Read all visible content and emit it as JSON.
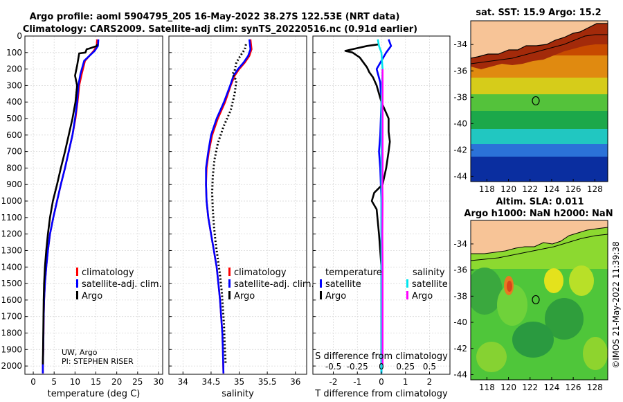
{
  "title": {
    "line1": "Argo profile: aoml 5904795_205 16-May-2022 38.27S 122.53E (NRT data)",
    "line2": "Climatology: CARS2009. Satellite-adj clim: synTS_20220516.nc (0.91d earlier)"
  },
  "credits": {
    "line1": "UW, Argo",
    "line2": "PI: STEPHEN RISER"
  },
  "side_text": "©IMOS 21-May-2022 11:39:38",
  "colors": {
    "climatology": "#ff0000",
    "satellite": "#0000ff",
    "argo": "#000000",
    "s_satellite": "#00e5ee",
    "s_argo": "#ff00ff",
    "land": "#f7c497"
  },
  "chart_data": [
    {
      "type": "line",
      "xlabel": "temperature (deg C)",
      "xlim": [
        -2,
        31
      ],
      "xticks": [
        0,
        5,
        10,
        15,
        20,
        25,
        30
      ],
      "ylim": [
        0,
        2050
      ],
      "yticks": [
        0,
        100,
        200,
        300,
        400,
        500,
        600,
        700,
        800,
        900,
        1000,
        1100,
        1200,
        1300,
        1400,
        1500,
        1600,
        1700,
        1800,
        1900,
        2000
      ],
      "grid": true,
      "legend": {
        "position": "lower-right",
        "entries": [
          "climatology",
          "satellite-adj. clim.",
          "Argo"
        ]
      },
      "series": [
        {
          "name": "climatology",
          "style": "solid",
          "x": [
            15.3,
            15.2,
            14.5,
            12.4,
            11.6,
            11.0,
            10.6,
            10.1,
            9.4,
            8.5,
            7.6,
            6.6,
            5.7,
            4.8,
            4.0,
            3.5,
            3.1,
            2.8,
            2.6,
            2.5,
            2.45,
            2.4,
            2.35,
            2.3,
            2.3
          ],
          "y": [
            20,
            60,
            90,
            150,
            230,
            300,
            400,
            500,
            600,
            700,
            800,
            900,
            1000,
            1100,
            1200,
            1300,
            1400,
            1500,
            1600,
            1700,
            1800,
            1900,
            1950,
            2000,
            2045
          ]
        },
        {
          "name": "satellite-adj. clim.",
          "style": "solid",
          "x": [
            15.6,
            15.5,
            14.7,
            12.2,
            11.3,
            10.8,
            10.5,
            10.0,
            9.4,
            8.5,
            7.6,
            6.6,
            5.7,
            4.8,
            4.0,
            3.5,
            3.1,
            2.8,
            2.6,
            2.5,
            2.45,
            2.4,
            2.35,
            2.3,
            2.3
          ],
          "y": [
            20,
            60,
            90,
            150,
            230,
            300,
            400,
            500,
            600,
            700,
            800,
            900,
            1000,
            1100,
            1200,
            1300,
            1400,
            1500,
            1600,
            1700,
            1800,
            1900,
            1950,
            2000,
            2045
          ]
        },
        {
          "name": "Argo",
          "style": "solid",
          "x": [
            15.3,
            15.2,
            13.5,
            12.8,
            12.5,
            11.0,
            10.5,
            10.0,
            10.5,
            10.1,
            9.4,
            8.5,
            7.6,
            6.6,
            5.7,
            4.7,
            4.0,
            3.5,
            3.1,
            2.8,
            2.6,
            2.5,
            2.45,
            2.4,
            2.35,
            2.3
          ],
          "y": [
            50,
            60,
            75,
            80,
            100,
            105,
            180,
            240,
            300,
            400,
            500,
            600,
            700,
            800,
            900,
            1000,
            1100,
            1200,
            1300,
            1400,
            1500,
            1600,
            1700,
            1800,
            1900,
            1990
          ]
        }
      ]
    },
    {
      "type": "line",
      "xlabel": "salinity",
      "xlim": [
        33.75,
        36.2
      ],
      "xticks": [
        34,
        34.5,
        35,
        35.5,
        36
      ],
      "ylim": [
        0,
        2050
      ],
      "yticks": [
        0,
        100,
        200,
        300,
        400,
        500,
        600,
        700,
        800,
        900,
        1000,
        1100,
        1200,
        1300,
        1400,
        1500,
        1600,
        1700,
        1800,
        1900,
        2000
      ],
      "grid": true,
      "legend": {
        "position": "lower-right",
        "entries": [
          "climatology",
          "satellite-adj. clim.",
          "Argo"
        ]
      },
      "series": [
        {
          "name": "climatology",
          "style": "solid",
          "x": [
            35.2,
            35.22,
            35.18,
            35.1,
            35.0,
            34.92,
            34.85,
            34.75,
            34.62,
            34.52,
            34.46,
            34.42,
            34.41,
            34.42,
            34.45,
            34.5,
            34.55,
            34.6,
            34.63,
            34.66,
            34.68,
            34.7,
            34.71,
            34.72
          ],
          "y": [
            20,
            80,
            120,
            160,
            200,
            240,
            300,
            400,
            500,
            600,
            700,
            800,
            900,
            1000,
            1100,
            1200,
            1300,
            1400,
            1500,
            1600,
            1700,
            1800,
            1900,
            2045
          ]
        },
        {
          "name": "satellite-adj. clim.",
          "style": "solid",
          "x": [
            35.18,
            35.2,
            35.16,
            35.08,
            34.98,
            34.9,
            34.84,
            34.73,
            34.6,
            34.5,
            34.45,
            34.41,
            34.41,
            34.42,
            34.45,
            34.5,
            34.55,
            34.6,
            34.63,
            34.66,
            34.68,
            34.7,
            34.71,
            34.72
          ],
          "y": [
            20,
            80,
            120,
            160,
            200,
            240,
            300,
            400,
            500,
            600,
            700,
            800,
            900,
            1000,
            1100,
            1200,
            1300,
            1400,
            1500,
            1600,
            1700,
            1800,
            1900,
            2045
          ]
        },
        {
          "name": "Argo",
          "style": "dotted",
          "x": [
            35.12,
            35.1,
            35.02,
            34.95,
            34.92,
            34.88,
            34.95,
            34.92,
            34.85,
            34.72,
            34.62,
            34.56,
            34.53,
            34.52,
            34.53,
            34.55,
            34.58,
            34.62,
            34.66,
            34.69,
            34.71,
            34.73,
            34.74,
            34.76
          ],
          "y": [
            50,
            80,
            120,
            160,
            210,
            230,
            270,
            350,
            450,
            550,
            650,
            750,
            850,
            950,
            1050,
            1150,
            1250,
            1350,
            1450,
            1550,
            1650,
            1750,
            1850,
            1990
          ]
        }
      ]
    },
    {
      "type": "line",
      "xlabel": "T difference from climatology",
      "xlabel_top": "S difference from climatology",
      "xlim": [
        -2.85,
        2.85
      ],
      "xticks": [
        -2,
        -1,
        0,
        1,
        2
      ],
      "xtick_labels_top": [
        "-0.5",
        "-0.25",
        "0",
        "0.25",
        "0.5"
      ],
      "ylim": [
        0,
        2050
      ],
      "yticks": [
        0,
        100,
        200,
        300,
        400,
        500,
        600,
        700,
        800,
        900,
        1000,
        1100,
        1200,
        1300,
        1400,
        1500,
        1600,
        1700,
        1800,
        1900,
        2000
      ],
      "grid": true,
      "legend": {
        "position": "lower",
        "temperature_title": "temperature",
        "salinity_title": "salinity",
        "temperature_entries": [
          "satellite",
          "Argo"
        ],
        "salinity_entries": [
          "satellite",
          "Argo"
        ]
      },
      "series": [
        {
          "name": "temperature satellite",
          "x": [
            0.3,
            0.4,
            0.2,
            -0.2,
            -0.05,
            0.0,
            -0.05,
            -0.1,
            -0.05,
            0.0,
            0.0,
            0.0,
            0.0,
            0.0,
            0.0,
            0.0
          ],
          "y": [
            20,
            60,
            100,
            200,
            280,
            400,
            600,
            700,
            800,
            1000,
            1200,
            1400,
            1600,
            1800,
            1950,
            2045
          ]
        },
        {
          "name": "temperature Argo",
          "x": [
            -0.1,
            -0.6,
            -1.5,
            -1.2,
            -0.9,
            -0.8,
            -0.6,
            -0.5,
            -0.35,
            -0.2,
            0.0,
            0.3,
            0.3,
            0.35,
            0.3,
            0.2,
            0.05,
            -0.3,
            -0.4,
            -0.2,
            -0.1,
            0.0,
            0.0,
            0.0,
            0.0
          ],
          "y": [
            50,
            60,
            90,
            100,
            130,
            150,
            190,
            220,
            250,
            300,
            400,
            500,
            580,
            640,
            700,
            800,
            900,
            950,
            1000,
            1050,
            1200,
            1400,
            1600,
            1800,
            1990
          ]
        },
        {
          "name": "salinity satellite",
          "x": [
            -0.15,
            -0.1,
            0.0,
            0.05,
            0.0,
            0.0,
            0.0,
            0.0,
            0.0
          ],
          "y": [
            20,
            60,
            100,
            200,
            400,
            800,
            1200,
            1600,
            2045
          ]
        },
        {
          "name": "salinity Argo",
          "x": [
            0.05,
            0.05,
            0.05,
            0.05,
            0.04,
            0.05,
            0.04,
            0.05,
            0.05,
            0.05
          ],
          "y": [
            200,
            400,
            600,
            800,
            900,
            1000,
            1200,
            1400,
            1600,
            1990
          ]
        }
      ]
    },
    {
      "type": "heatmap",
      "title": "sat. SST: 15.9 Argo: 15.2",
      "xlim": [
        116.5,
        129.2
      ],
      "ylim": [
        -44.4,
        -32.2
      ],
      "xticks": [
        118,
        120,
        122,
        124,
        126,
        128
      ],
      "yticks": [
        -34,
        -36,
        -38,
        -40,
        -42,
        -44
      ],
      "profile_location": {
        "lon": 122.53,
        "lat": -38.27
      }
    },
    {
      "type": "heatmap",
      "title": "Altim. SLA: 0.011",
      "subtitle": "Argo h1000: NaN h2000: NaN",
      "xlim": [
        116.5,
        129.2
      ],
      "ylim": [
        -44.4,
        -32.2
      ],
      "xticks": [
        118,
        120,
        122,
        124,
        126,
        128
      ],
      "yticks": [
        -34,
        -36,
        -38,
        -40,
        -42,
        -44
      ],
      "profile_location": {
        "lon": 122.53,
        "lat": -38.27
      }
    }
  ]
}
